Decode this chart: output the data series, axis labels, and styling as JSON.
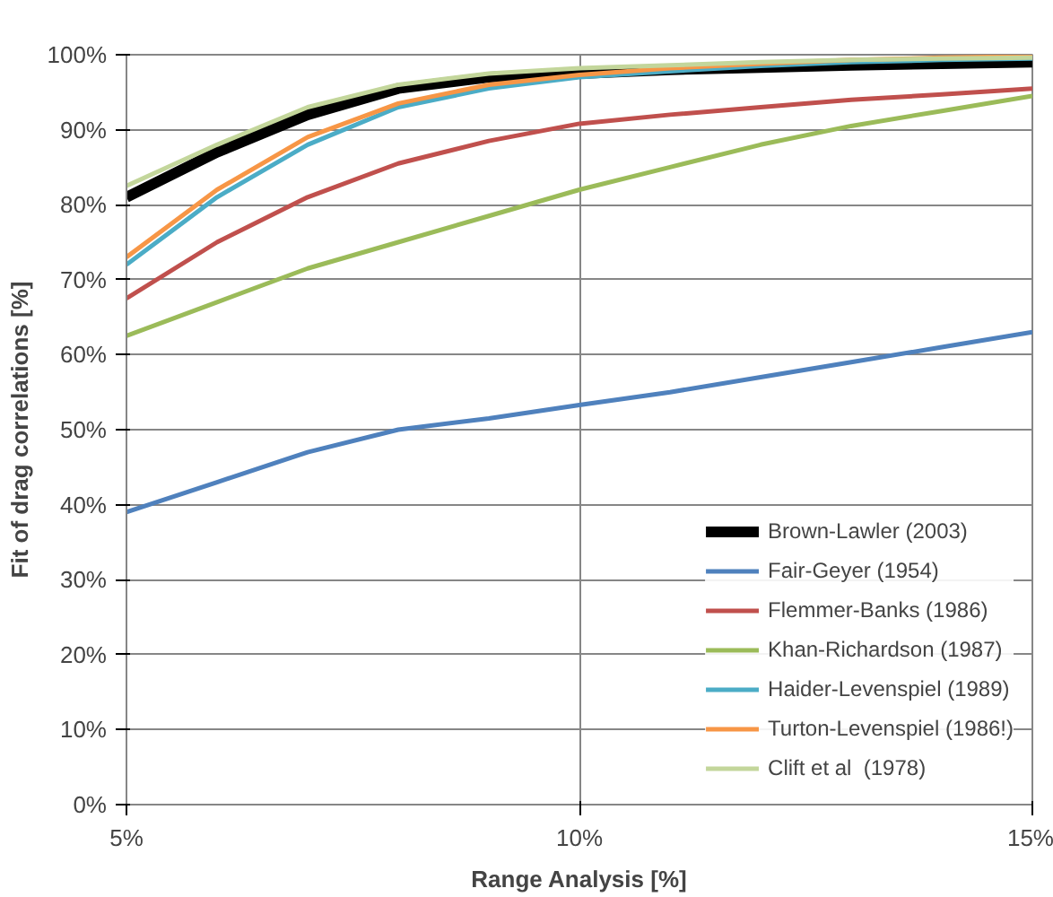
{
  "chart_data": {
    "type": "line",
    "xlabel": "Range Analysis [%]",
    "ylabel": "Fit of drag correlations [%]",
    "x": [
      5,
      6,
      7,
      8,
      9,
      10,
      11,
      12,
      13,
      14,
      15
    ],
    "series": [
      {
        "name": "Brown-Lawler (2003)",
        "color": "#000000",
        "values": [
          81,
          87,
          92,
          95.5,
          97,
          97.5,
          98,
          98.3,
          98.6,
          98.8,
          99
        ]
      },
      {
        "name": "Fair-Geyer (1954)",
        "color": "#4f81bd",
        "values": [
          39,
          43,
          47,
          50,
          51.5,
          53.3,
          55,
          57,
          59,
          61,
          63
        ]
      },
      {
        "name": "Flemmer-Banks (1986)",
        "color": "#c0504d",
        "values": [
          67.5,
          75,
          81,
          85.5,
          88.5,
          90.8,
          92,
          93,
          94,
          94.7,
          95.5
        ]
      },
      {
        "name": "Khan-Richardson (1987)",
        "color": "#9bbb59",
        "values": [
          62.5,
          67,
          71.5,
          75,
          78.5,
          82,
          85,
          88,
          90.5,
          92.5,
          94.5
        ]
      },
      {
        "name": "Haider-Levenspiel (1989)",
        "color": "#4bacc6",
        "values": [
          72,
          81,
          88,
          93,
          95.5,
          97,
          97.8,
          98.5,
          99,
          99.3,
          99.5
        ]
      },
      {
        "name": "Turton-Levenspiel (1986!)",
        "color": "#f79646",
        "values": [
          73,
          82,
          89,
          93.5,
          96,
          97.3,
          98.2,
          98.8,
          99.3,
          99.6,
          99.8
        ]
      },
      {
        "name": "Clift et al  (1978)",
        "color": "#c3d69b",
        "values": [
          82.5,
          88,
          93,
          96,
          97.5,
          98.2,
          98.6,
          99,
          99.3,
          99.5,
          99.6
        ]
      }
    ],
    "xlim": [
      5,
      15
    ],
    "xticks": [
      {
        "value": 5,
        "label": "5%"
      },
      {
        "value": 10,
        "label": "10%"
      },
      {
        "value": 15,
        "label": "15%"
      }
    ],
    "ylim": [
      0,
      100
    ],
    "yticks": [
      {
        "value": 0,
        "label": "0%"
      },
      {
        "value": 10,
        "label": "10%"
      },
      {
        "value": 20,
        "label": "20%"
      },
      {
        "value": 30,
        "label": "30%"
      },
      {
        "value": 40,
        "label": "40%"
      },
      {
        "value": 50,
        "label": "50%"
      },
      {
        "value": 60,
        "label": "60%"
      },
      {
        "value": 70,
        "label": "70%"
      },
      {
        "value": 80,
        "label": "80%"
      },
      {
        "value": 90,
        "label": "90%"
      },
      {
        "value": 100,
        "label": "100%"
      }
    ],
    "grid": true,
    "legend": "bottom right",
    "marker": "none",
    "line_style": "solid"
  }
}
